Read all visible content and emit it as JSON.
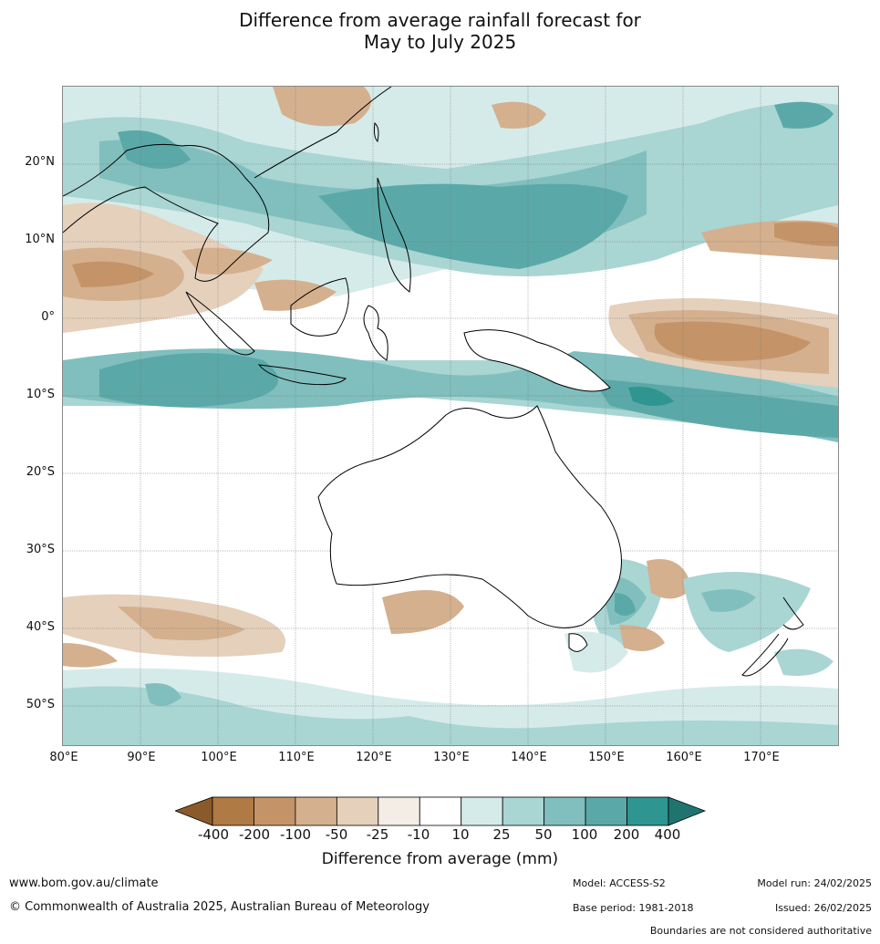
{
  "title_line1": "Difference from average rainfall forecast for",
  "title_line2": "May to July 2025",
  "lat_labels": [
    "20°N",
    "10°N",
    "0°",
    "10°S",
    "20°S",
    "30°S",
    "40°S",
    "50°S"
  ],
  "lon_labels": [
    "80°E",
    "90°E",
    "100°E",
    "110°E",
    "120°E",
    "130°E",
    "140°E",
    "150°E",
    "160°E",
    "170°E"
  ],
  "legend": {
    "ticks": [
      "-400",
      "-200",
      "-100",
      "-50",
      "-25",
      "-10",
      "10",
      "25",
      "50",
      "100",
      "200",
      "400"
    ],
    "colors": [
      "#8b5a2b",
      "#b07a45",
      "#c49468",
      "#d4b08e",
      "#e5d0bc",
      "#f3ede6",
      "#ffffff",
      "#d5ebea",
      "#a9d5d3",
      "#80bfbd",
      "#5aa9a8",
      "#2e9591",
      "#1f7470"
    ],
    "label": "Difference from average (mm)"
  },
  "footer": {
    "url": "www.bom.gov.au/climate",
    "copyright": "© Commonwealth of Australia 2025, Australian Bureau of Meteorology",
    "model": "Model: ACCESS-S2",
    "base_period": "Base period: 1981-2018",
    "model_run": "Model run: 24/02/2025",
    "issued": "Issued: 26/02/2025",
    "boundaries": "Boundaries are not considered authoritative"
  }
}
